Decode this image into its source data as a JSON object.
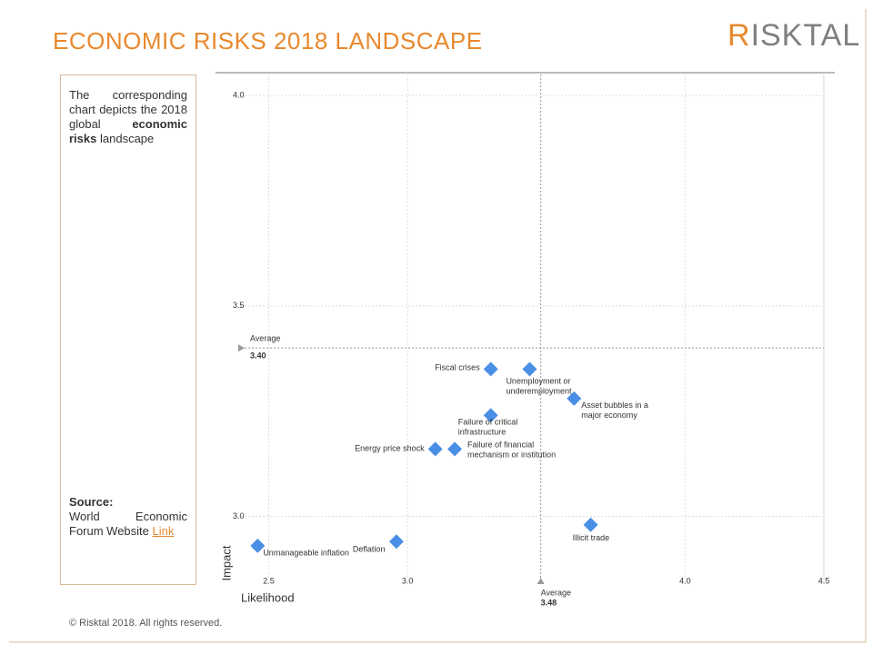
{
  "header": {
    "title": "ECONOMIC RISKS 2018 LANDSCAPE",
    "logo": "RISKTAL"
  },
  "panel": {
    "intro": "The corresponding chart depicts the 2018 global",
    "intro_bold": "economic risks",
    "intro_end": "landscape",
    "source_label": "Source:",
    "source_text": "World Economic Forum Website",
    "source_link": "Link"
  },
  "footer": "© Risktal 2018. All rights reserved.",
  "chart_data": {
    "type": "scatter",
    "xlabel": "Likelihood",
    "ylabel": "Impact",
    "color": "#4a8fe6",
    "xlim": [
      2.4,
      4.5
    ],
    "ylim": [
      2.85,
      4.05
    ],
    "xticks": [
      2.5,
      {
        "value": 3,
        "label": "3.0"
      },
      {
        "value": 4,
        "label": "4.0"
      },
      4.5
    ],
    "yticks": [
      {
        "value": 4,
        "label": "4.0"
      },
      3.5,
      {
        "value": 3,
        "label": "3.0"
      }
    ],
    "grid": true,
    "average_label": "Average",
    "x_average": 3.48,
    "y_average": {
      "value": 3.4,
      "label": "3.40"
    },
    "labels": [
      "Fiscal crises",
      "Unemployment or underemployment",
      "Asset bubbles in a major economy",
      "Failure of critical infrastructure",
      "Energy price shock",
      "Failure of financial mechanism or institution",
      "Illicit trade",
      "Deflation",
      "Unmanageable inflation"
    ],
    "x": [
      3.3,
      3.44,
      3.6,
      3.3,
      3.1,
      3.17,
      3.66,
      2.96,
      2.46
    ],
    "y": [
      3.35,
      3.35,
      3.28,
      3.24,
      3.16,
      3.16,
      2.98,
      2.94,
      2.93
    ]
  }
}
